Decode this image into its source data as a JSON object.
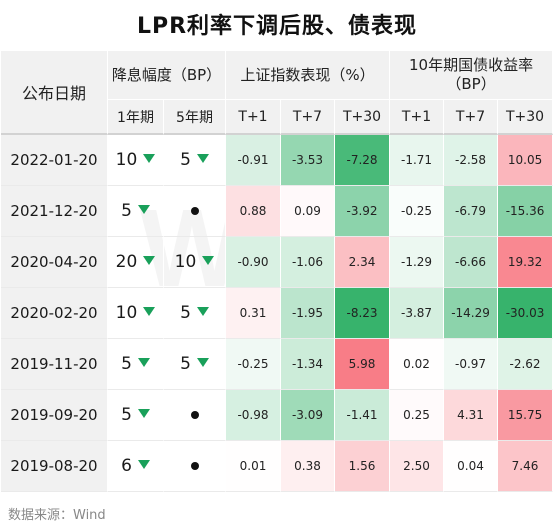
{
  "title": "LPR利率下调后股、债表现",
  "watermark": "Wind",
  "source": "数据来源：Wind",
  "header": {
    "date_col": "公布日期",
    "cut_group": "降息幅度（BP）",
    "cut_1y": "1年期",
    "cut_5y": "5年期",
    "stock_group": "上证指数表现（%）",
    "bond_group": "10年期国债收益率（BP）",
    "t1": "T+1",
    "t7": "T+7",
    "t30": "T+30"
  },
  "rows": [
    {
      "date": "2022-01-20",
      "cut_1y": "10",
      "cut_5y": "5",
      "stock": [
        "-0.91",
        "-3.53",
        "-7.28"
      ],
      "bond": [
        "-1.71",
        "-2.58",
        "10.05"
      ]
    },
    {
      "date": "2021-12-20",
      "cut_1y": "5",
      "cut_5y": "",
      "stock": [
        "0.88",
        "0.09",
        "-3.92"
      ],
      "bond": [
        "-0.25",
        "-6.79",
        "-15.36"
      ]
    },
    {
      "date": "2020-04-20",
      "cut_1y": "20",
      "cut_5y": "10",
      "stock": [
        "-0.90",
        "-1.06",
        "2.34"
      ],
      "bond": [
        "-1.29",
        "-6.66",
        "19.32"
      ]
    },
    {
      "date": "2020-02-20",
      "cut_1y": "10",
      "cut_5y": "5",
      "stock": [
        "0.31",
        "-1.95",
        "-8.23"
      ],
      "bond": [
        "-3.87",
        "-14.29",
        "-30.03"
      ]
    },
    {
      "date": "2019-11-20",
      "cut_1y": "5",
      "cut_5y": "5",
      "stock": [
        "-0.25",
        "-1.34",
        "5.98"
      ],
      "bond": [
        "0.02",
        "-0.97",
        "-2.62"
      ]
    },
    {
      "date": "2019-09-20",
      "cut_1y": "5",
      "cut_5y": "",
      "stock": [
        "-0.98",
        "-3.09",
        "-1.41"
      ],
      "bond": [
        "0.25",
        "4.31",
        "15.75"
      ]
    },
    {
      "date": "2019-08-20",
      "cut_1y": "6",
      "cut_5y": "",
      "stock": [
        "0.01",
        "0.38",
        "1.56"
      ],
      "bond": [
        "2.50",
        "0.04",
        "7.46"
      ]
    }
  ],
  "colors": {
    "positive_max": "#f65a66",
    "negative_max": "#37b36c",
    "header_bg": "#f1f1f1",
    "down_arrow": "#19a05a"
  },
  "icons": {
    "cut_marker": "down-triangle-icon",
    "no_cut_marker": "dot-icon"
  }
}
